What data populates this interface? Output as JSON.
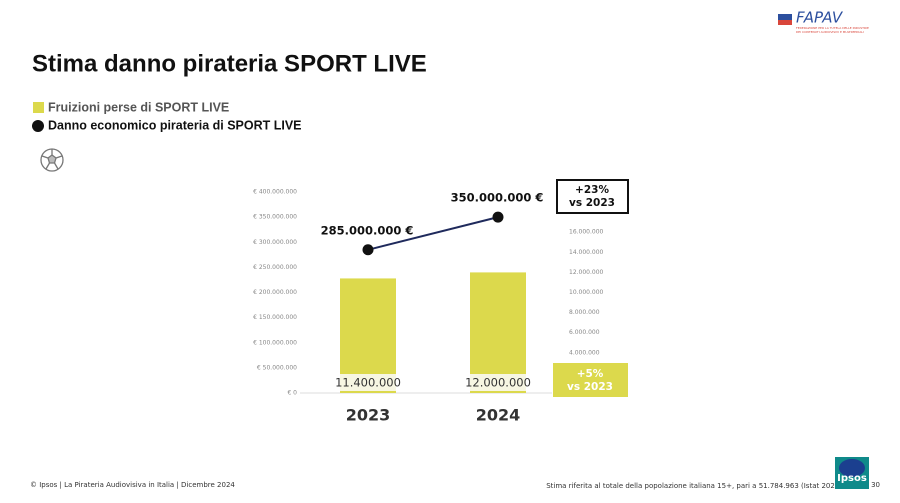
{
  "chart_data": {
    "type": "bar",
    "title": "Stima danno pirateria SPORT LIVE",
    "categories": [
      "2023",
      "2024"
    ],
    "series": [
      {
        "name": "Fruizioni perse di SPORT LIVE",
        "type": "bar",
        "axis": "y2",
        "color": "#dcd94c",
        "values": [
          11400000,
          12000000
        ],
        "value_labels": [
          "11.400.000",
          "12.000.000"
        ]
      },
      {
        "name": "Danno economico pirateria di SPORT LIVE",
        "type": "line",
        "color": "#1f2a5c",
        "values": [
          285000000,
          350000000
        ],
        "value_labels": [
          "285.000.000 €",
          "350.000.000 €"
        ]
      }
    ],
    "ylim": [
      0,
      400000000
    ],
    "yticks": [
      {
        "value": 0,
        "label": "€ 0"
      },
      {
        "value": 50000000,
        "label": "€ 50.000.000"
      },
      {
        "value": 100000000,
        "label": "€ 100.000.000"
      },
      {
        "value": 150000000,
        "label": "€ 150.000.000"
      },
      {
        "value": 200000000,
        "label": "€ 200.000.000"
      },
      {
        "value": 250000000,
        "label": "€ 250.000.000"
      },
      {
        "value": 300000000,
        "label": "€ 300.000.000"
      },
      {
        "value": 350000000,
        "label": "€ 350.000.000"
      },
      {
        "value": 400000000,
        "label": "€ 400.000.000"
      }
    ],
    "y2lim": [
      0,
      20000000
    ],
    "y2ticks": [
      {
        "value": 4000000,
        "label": "4.000.000"
      },
      {
        "value": 6000000,
        "label": "6.000.000"
      },
      {
        "value": 8000000,
        "label": "8.000.000"
      },
      {
        "value": 10000000,
        "label": "10.000.000"
      },
      {
        "value": 12000000,
        "label": "12.000.000"
      },
      {
        "value": 14000000,
        "label": "14.000.000"
      },
      {
        "value": 16000000,
        "label": "16.000.000"
      }
    ],
    "annotations": [
      {
        "lines": [
          "+23%",
          "vs 2023"
        ]
      },
      {
        "lines": [
          "+5%",
          "vs 2023"
        ]
      }
    ],
    "footnote": "Stima riferita al totale della popolazione italiana 15+, pari a 51.784.963 (Istat 2024)"
  },
  "footer": {
    "source": "© Ipsos | La Pirateria Audiovisiva in Italia | Dicembre 2024",
    "page": "30"
  },
  "logos": {
    "fapav": "FAPAV",
    "fapav_subtitle": [
      "FEDERAZIONE PER LA TUTELA DELLE INDUSTRIE",
      "DEI CONTENUTI AUDIOVISIVI E MULTIMEDIALI"
    ],
    "ipsos": "Ipsos"
  }
}
